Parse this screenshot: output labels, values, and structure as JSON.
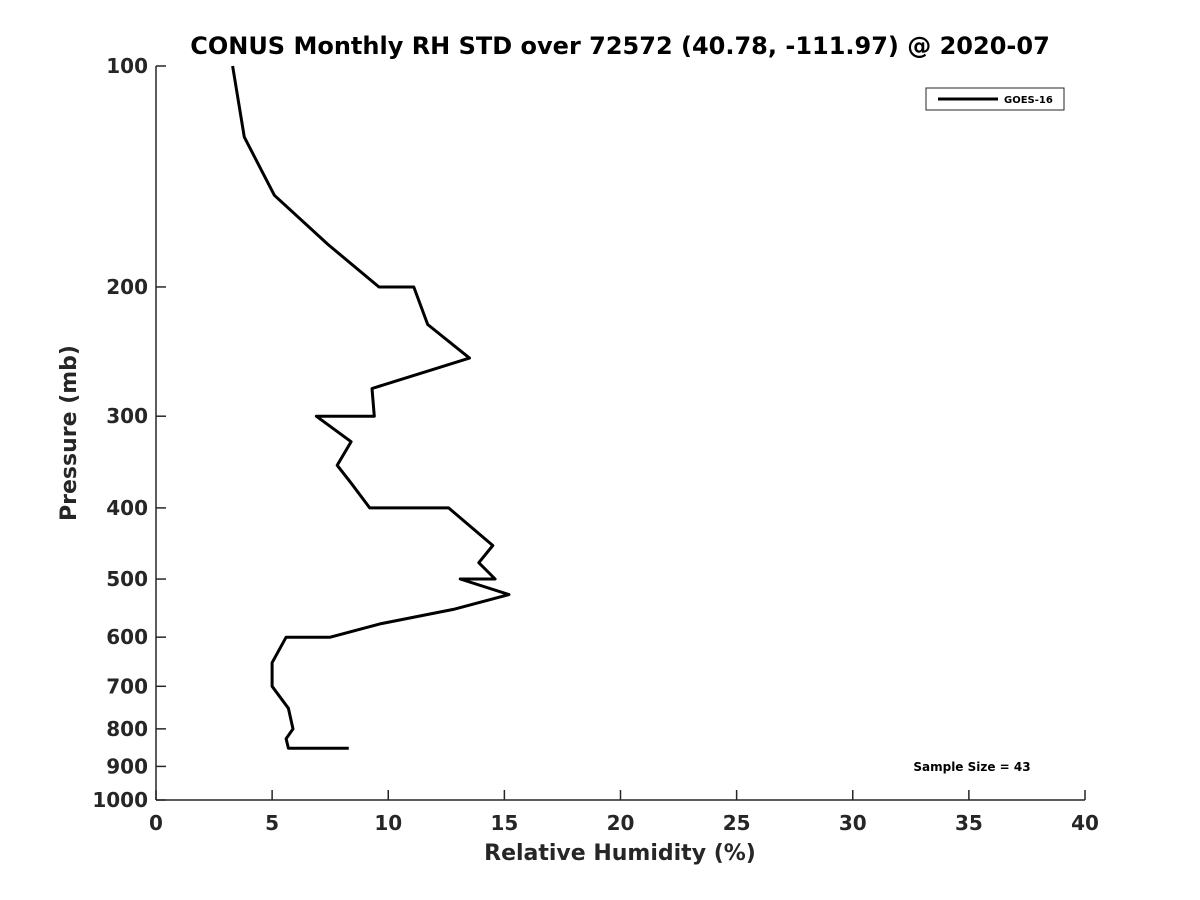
{
  "chart_data": {
    "type": "line",
    "title": "CONUS Monthly RH STD over 72572 (40.78, -111.97) @ 2020-07",
    "xlabel": "Relative Humidity (%)",
    "ylabel": "Pressure (mb)",
    "xlim": [
      0,
      40
    ],
    "ylim": [
      100,
      1000
    ],
    "y_scale": "log",
    "y_reversed": true,
    "grid": false,
    "legend_position": "top-right",
    "x_ticks": [
      "0",
      "5",
      "10",
      "15",
      "20",
      "25",
      "30",
      "35",
      "40"
    ],
    "y_ticks": [
      "100",
      "200",
      "300",
      "400",
      "500",
      "600",
      "700",
      "800",
      "900",
      "1000"
    ],
    "annotation": "Sample Size = 43",
    "series": [
      {
        "name": "GOES-16",
        "color": "#000000",
        "points": [
          {
            "x": 3.3,
            "y": 100
          },
          {
            "x": 3.8,
            "y": 125
          },
          {
            "x": 5.1,
            "y": 150
          },
          {
            "x": 7.4,
            "y": 175
          },
          {
            "x": 9.6,
            "y": 200
          },
          {
            "x": 11.1,
            "y": 200
          },
          {
            "x": 11.7,
            "y": 225
          },
          {
            "x": 13.5,
            "y": 250
          },
          {
            "x": 9.3,
            "y": 275
          },
          {
            "x": 9.4,
            "y": 300
          },
          {
            "x": 6.9,
            "y": 300
          },
          {
            "x": 8.4,
            "y": 325
          },
          {
            "x": 7.8,
            "y": 350
          },
          {
            "x": 8.4,
            "y": 370
          },
          {
            "x": 9.2,
            "y": 400
          },
          {
            "x": 12.6,
            "y": 400
          },
          {
            "x": 14.5,
            "y": 450
          },
          {
            "x": 13.9,
            "y": 475
          },
          {
            "x": 14.6,
            "y": 500
          },
          {
            "x": 14.2,
            "y": 500
          },
          {
            "x": 13.1,
            "y": 500
          },
          {
            "x": 15.2,
            "y": 525
          },
          {
            "x": 12.8,
            "y": 550
          },
          {
            "x": 9.7,
            "y": 575
          },
          {
            "x": 7.5,
            "y": 600
          },
          {
            "x": 5.6,
            "y": 600
          },
          {
            "x": 5.0,
            "y": 650
          },
          {
            "x": 5.0,
            "y": 700
          },
          {
            "x": 5.7,
            "y": 750
          },
          {
            "x": 5.9,
            "y": 800
          },
          {
            "x": 5.6,
            "y": 825
          },
          {
            "x": 5.7,
            "y": 850
          },
          {
            "x": 8.3,
            "y": 850
          }
        ]
      }
    ]
  }
}
